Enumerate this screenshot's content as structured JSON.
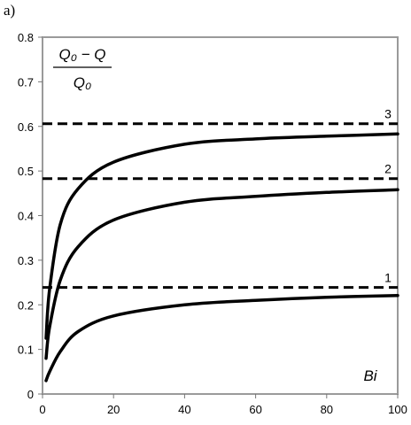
{
  "panel_label": "a)",
  "chart_data": {
    "type": "line",
    "title": "",
    "xlabel": "Bi",
    "ylabel_numerator": "Q₀ − Q",
    "ylabel_denominator": "Q₀",
    "xlim": [
      0,
      100
    ],
    "ylim": [
      0,
      0.8
    ],
    "x_ticks": [
      "0",
      "20",
      "40",
      "60",
      "80",
      "100"
    ],
    "y_ticks": [
      "0",
      "0.1",
      "0.2",
      "0.3",
      "0.4",
      "0.5",
      "0.6",
      "0.7",
      "0.8"
    ],
    "grid": false,
    "color": "#000000",
    "asymptotes": [
      {
        "label": "1",
        "y": 0.239
      },
      {
        "label": "2",
        "y": 0.483
      },
      {
        "label": "3",
        "y": 0.606
      }
    ],
    "series": [
      {
        "label": "1",
        "x": [
          1,
          2,
          5,
          10,
          20,
          40,
          60,
          80,
          100
        ],
        "y": [
          0.03,
          0.05,
          0.095,
          0.14,
          0.175,
          0.2,
          0.21,
          0.217,
          0.221
        ]
      },
      {
        "label": "2",
        "x": [
          1,
          2,
          5,
          10,
          20,
          40,
          60,
          80,
          100
        ],
        "y": [
          0.08,
          0.15,
          0.255,
          0.33,
          0.39,
          0.43,
          0.443,
          0.452,
          0.458
        ]
      },
      {
        "label": "3",
        "x": [
          1,
          2,
          5,
          10,
          20,
          40,
          60,
          80,
          100
        ],
        "y": [
          0.125,
          0.235,
          0.38,
          0.46,
          0.52,
          0.56,
          0.572,
          0.578,
          0.583
        ]
      }
    ]
  }
}
